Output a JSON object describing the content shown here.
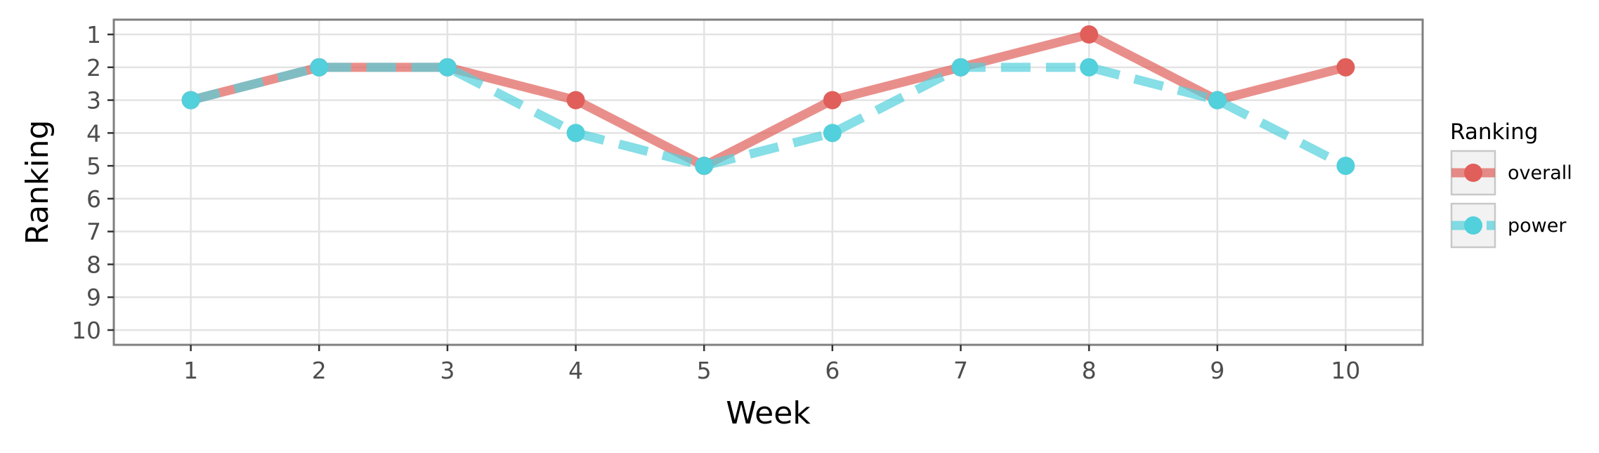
{
  "chart_data": {
    "type": "line",
    "title": "",
    "xlabel": "Week",
    "ylabel": "Ranking",
    "x": [
      1,
      2,
      3,
      4,
      5,
      6,
      7,
      8,
      9,
      10
    ],
    "x_ticks": [
      "1",
      "2",
      "3",
      "4",
      "5",
      "6",
      "7",
      "8",
      "9",
      "10"
    ],
    "y_ticks": [
      "1",
      "2",
      "3",
      "4",
      "5",
      "6",
      "7",
      "8",
      "9",
      "10"
    ],
    "xlim": [
      0.4,
      10.6
    ],
    "ylim": [
      0.55,
      10.45
    ],
    "y_reversed": true,
    "grid": true,
    "legend": {
      "title": "Ranking",
      "placement": "right"
    },
    "series": [
      {
        "name": "overall",
        "values": [
          3,
          2,
          2,
          3,
          5,
          3,
          2,
          1,
          3,
          2
        ],
        "color": "#e05f5a",
        "line_style": "solid"
      },
      {
        "name": "power",
        "values": [
          3,
          2,
          2,
          4,
          5,
          4,
          2,
          2,
          3,
          5
        ],
        "color": "#52d0db",
        "line_style": "dashed"
      }
    ]
  }
}
